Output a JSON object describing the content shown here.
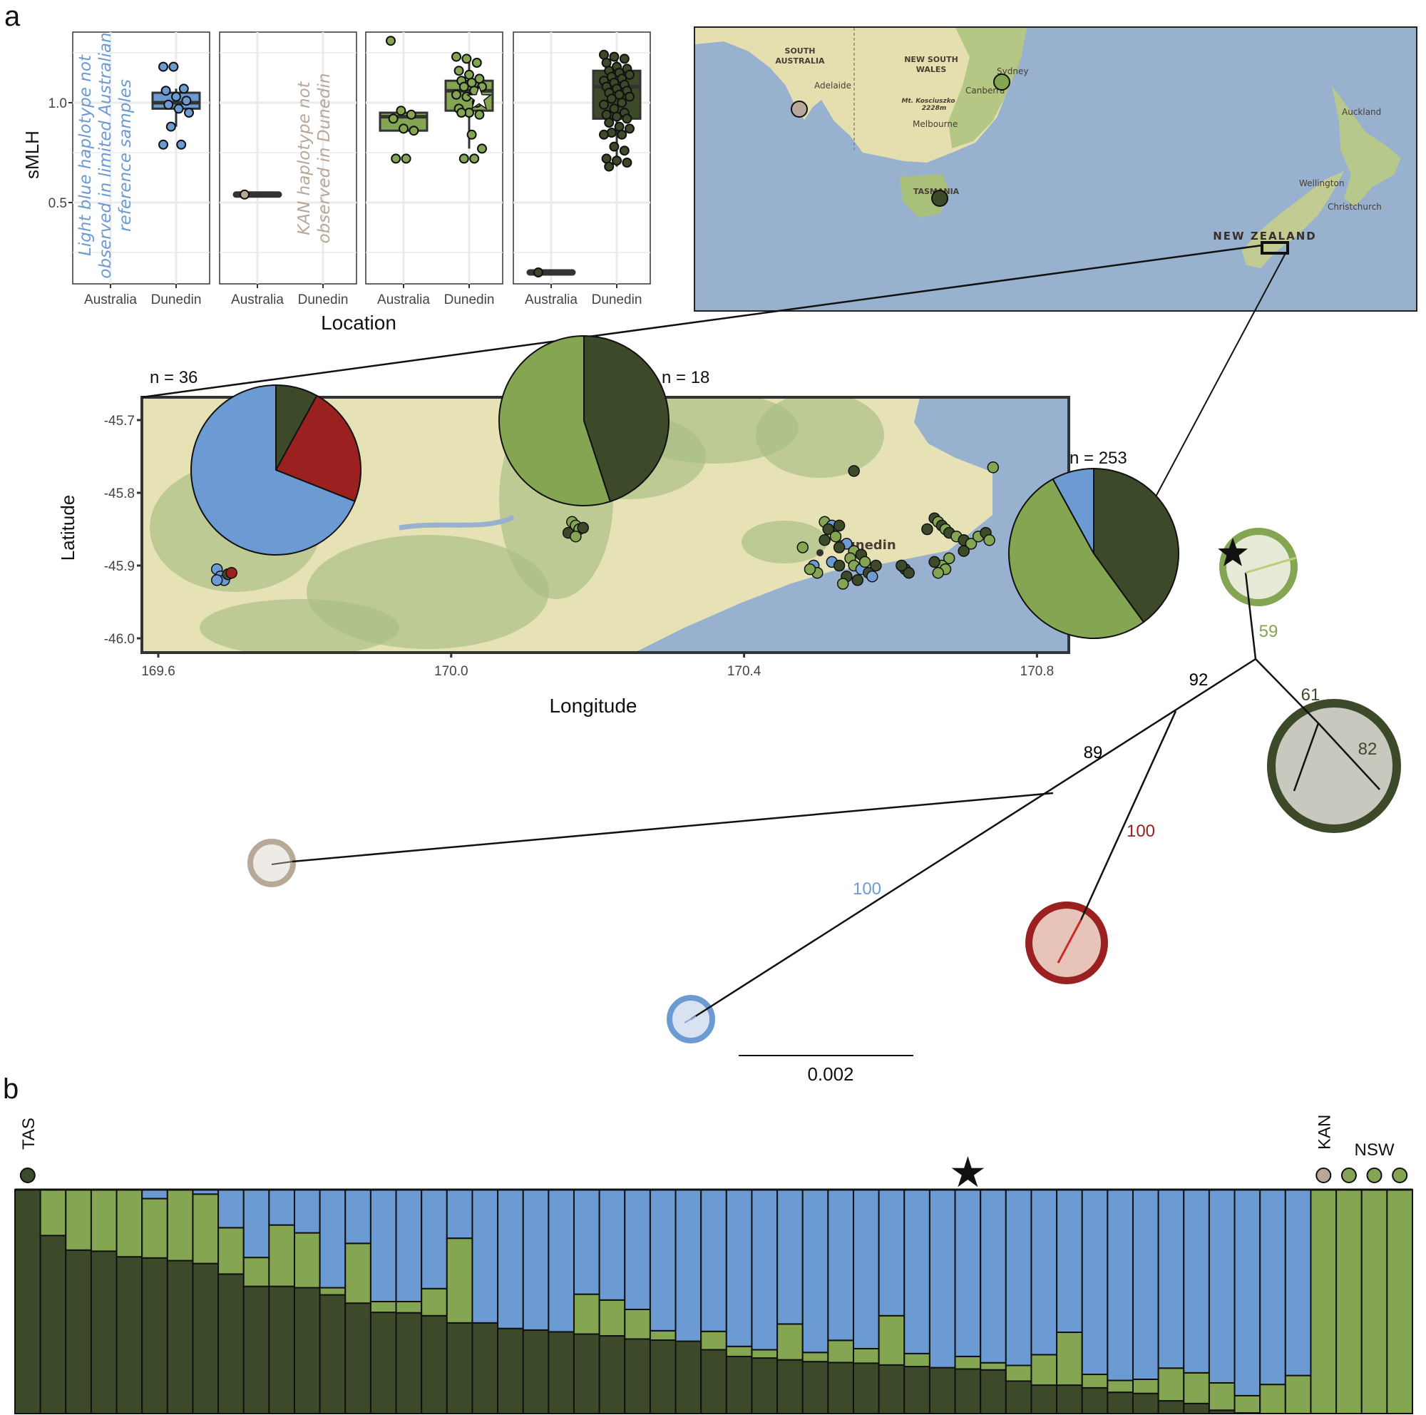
{
  "colors": {
    "dark_green": "#3d4a2a",
    "light_green": "#84a552",
    "blue": "#6b9bd2",
    "red": "#9b2020",
    "tan": "#b8a898"
  },
  "panel_labels": {
    "a": "a",
    "b": "b"
  },
  "chart_data": [
    {
      "type": "box",
      "ylabel": "sMLH",
      "xlabel": "Location",
      "ylim": [
        0.1,
        1.35
      ],
      "yticks": [
        "0.5",
        "1.0"
      ],
      "grid": true,
      "panels": [
        {
          "categories": [
            "Australia",
            "Dunedin"
          ],
          "color": "blue",
          "annotation": [
            "Light blue haplotype not",
            "observed in limited Australian",
            "reference samples"
          ],
          "groups": [
            {
              "location": "Australia",
              "points": []
            },
            {
              "location": "Dunedin",
              "box": [
                0.97,
                1.0,
                1.05
              ],
              "whiskers": [
                0.88,
                1.07
              ],
              "points": [
                1.18,
                1.18,
                1.07,
                1.06,
                1.03,
                1.01,
                0.99,
                0.97,
                0.95,
                0.88,
                0.79,
                0.79
              ]
            }
          ]
        },
        {
          "categories": [
            "Australia",
            "Dunedin"
          ],
          "color": "tan",
          "annotation": [
            "KAN haplotype not",
            "observed in Dunedin"
          ],
          "groups": [
            {
              "location": "Australia",
              "box": [
                0.54,
                0.54,
                0.54
              ],
              "whiskers": [
                0.54,
                0.54
              ],
              "points": [
                0.54
              ]
            },
            {
              "location": "Dunedin",
              "points": []
            }
          ]
        },
        {
          "categories": [
            "Australia",
            "Dunedin"
          ],
          "color": "light_green",
          "groups": [
            {
              "location": "Australia",
              "box": [
                0.86,
                0.93,
                0.95
              ],
              "whiskers": [
                0.86,
                0.96
              ],
              "points": [
                1.31,
                0.96,
                0.94,
                0.92,
                0.87,
                0.86,
                0.72,
                0.72
              ]
            },
            {
              "location": "Dunedin",
              "box": [
                0.96,
                1.06,
                1.11
              ],
              "whiskers": [
                0.77,
                1.23
              ],
              "star": 1.02,
              "points": [
                1.23,
                1.22,
                1.2,
                1.16,
                1.14,
                1.12,
                1.11,
                1.1,
                1.08,
                1.08,
                1.06,
                1.04,
                1.03,
                1.0,
                0.97,
                0.95,
                0.94,
                0.95,
                0.84,
                0.77,
                0.72,
                0.72
              ]
            }
          ]
        },
        {
          "categories": [
            "Australia",
            "Dunedin"
          ],
          "color": "dark_green",
          "groups": [
            {
              "location": "Australia",
              "box": [
                0.15,
                0.15,
                0.15
              ],
              "whiskers": [
                0.15,
                0.15
              ],
              "points": [
                0.15
              ]
            },
            {
              "location": "Dunedin",
              "box": [
                0.92,
                1.08,
                1.16
              ],
              "whiskers": [
                0.68,
                1.23
              ],
              "points": [
                1.24,
                1.23,
                1.22,
                1.2,
                1.18,
                1.17,
                1.16,
                1.15,
                1.14,
                1.13,
                1.12,
                1.11,
                1.1,
                1.09,
                1.08,
                1.07,
                1.06,
                1.05,
                1.04,
                1.03,
                1.02,
                1.0,
                0.99,
                0.97,
                0.95,
                0.94,
                0.93,
                0.92,
                0.9,
                0.88,
                0.87,
                0.85,
                0.84,
                0.84,
                0.78,
                0.76,
                0.72,
                0.71,
                0.7,
                0.68
              ]
            }
          ]
        }
      ]
    },
    {
      "type": "scatter-map",
      "xlabel": "Longitude",
      "ylabel": "Latitude",
      "xticks": [
        169.6,
        170.0,
        170.4,
        170.8
      ],
      "xtick_labels": [
        "169.6",
        "170.0",
        "170.4",
        "170.8"
      ],
      "yticks": [
        -45.7,
        -45.8,
        -45.9,
        -46.0
      ],
      "ytick_labels": [
        "-45.7",
        "-45.8",
        "-45.9",
        "-46.0"
      ],
      "place_label": "Dunedin",
      "points": [
        [
          169.68,
          -45.905,
          "blue"
        ],
        [
          169.685,
          -45.915,
          "blue"
        ],
        [
          169.69,
          -45.92,
          "blue"
        ],
        [
          169.695,
          -45.912,
          "dark_green"
        ],
        [
          169.7,
          -45.91,
          "red"
        ],
        [
          169.68,
          -45.92,
          "blue"
        ],
        [
          170.165,
          -45.84,
          "light_green"
        ],
        [
          170.17,
          -45.845,
          "light_green"
        ],
        [
          170.175,
          -45.85,
          "light_green"
        ],
        [
          170.16,
          -45.855,
          "dark_green"
        ],
        [
          170.17,
          -45.86,
          "light_green"
        ],
        [
          170.18,
          -45.848,
          "dark_green"
        ],
        [
          170.55,
          -45.77,
          "dark_green"
        ],
        [
          170.74,
          -45.765,
          "light_green"
        ],
        [
          170.48,
          -45.875,
          "light_green"
        ],
        [
          170.51,
          -45.84,
          "light_green"
        ],
        [
          170.52,
          -45.845,
          "blue"
        ],
        [
          170.53,
          -45.845,
          "dark_green"
        ],
        [
          170.515,
          -45.85,
          "dark_green"
        ],
        [
          170.525,
          -45.86,
          "light_green"
        ],
        [
          170.51,
          -45.865,
          "dark_green"
        ],
        [
          170.54,
          -45.87,
          "blue"
        ],
        [
          170.53,
          -45.875,
          "dark_green"
        ],
        [
          170.55,
          -45.88,
          "light_green"
        ],
        [
          170.56,
          -45.885,
          "dark_green"
        ],
        [
          170.545,
          -45.89,
          "light_green"
        ],
        [
          170.52,
          -45.895,
          "blue"
        ],
        [
          170.53,
          -45.9,
          "dark_green"
        ],
        [
          170.55,
          -45.9,
          "light_green"
        ],
        [
          170.56,
          -45.905,
          "blue"
        ],
        [
          170.57,
          -45.91,
          "dark_green"
        ],
        [
          170.54,
          -45.915,
          "dark_green"
        ],
        [
          170.495,
          -45.9,
          "blue"
        ],
        [
          170.5,
          -45.91,
          "light_green"
        ],
        [
          170.49,
          -45.905,
          "light_green"
        ],
        [
          170.555,
          -45.92,
          "dark_green"
        ],
        [
          170.575,
          -45.915,
          "blue"
        ],
        [
          170.58,
          -45.9,
          "dark_green"
        ],
        [
          170.62,
          -45.905,
          "dark_green"
        ],
        [
          170.625,
          -45.91,
          "dark_green"
        ],
        [
          170.615,
          -45.9,
          "dark_green"
        ],
        [
          170.535,
          -45.925,
          "light_green"
        ],
        [
          170.565,
          -45.895,
          "light_green"
        ],
        [
          170.66,
          -45.835,
          "dark_green"
        ],
        [
          170.665,
          -45.84,
          "light_green"
        ],
        [
          170.67,
          -45.845,
          "dark_green"
        ],
        [
          170.675,
          -45.85,
          "light_green"
        ],
        [
          170.68,
          -45.855,
          "dark_green"
        ],
        [
          170.69,
          -45.86,
          "light_green"
        ],
        [
          170.7,
          -45.865,
          "dark_green"
        ],
        [
          170.71,
          -45.87,
          "light_green"
        ],
        [
          170.72,
          -45.86,
          "light_green"
        ],
        [
          170.73,
          -45.855,
          "dark_green"
        ],
        [
          170.735,
          -45.865,
          "light_green"
        ],
        [
          170.7,
          -45.88,
          "dark_green"
        ],
        [
          170.68,
          -45.89,
          "light_green"
        ],
        [
          170.67,
          -45.9,
          "light_green"
        ],
        [
          170.66,
          -45.895,
          "dark_green"
        ],
        [
          170.675,
          -45.905,
          "light_green"
        ],
        [
          170.665,
          -45.91,
          "light_green"
        ],
        [
          170.65,
          -45.85,
          "dark_green"
        ]
      ]
    },
    {
      "type": "pie",
      "pies": [
        {
          "label": "n = 36",
          "slices": [
            {
              "color": "dark_green",
              "value": 0.08
            },
            {
              "color": "red",
              "value": 0.23
            },
            {
              "color": "blue",
              "value": 0.69
            }
          ]
        },
        {
          "label": "n = 18",
          "slices": [
            {
              "color": "dark_green",
              "value": 0.45
            },
            {
              "color": "light_green",
              "value": 0.55
            }
          ]
        },
        {
          "label": "n = 253",
          "slices": [
            {
              "color": "dark_green",
              "value": 0.4
            },
            {
              "color": "light_green",
              "value": 0.52
            },
            {
              "color": "blue",
              "value": 0.08
            }
          ]
        }
      ]
    },
    {
      "type": "tree",
      "scale_bar": "0.002",
      "supports": [
        {
          "value": "59",
          "color": "light_green"
        },
        {
          "value": "61",
          "color": "dark_green"
        },
        {
          "value": "82",
          "color": "dark_green"
        },
        {
          "value": "92",
          "color": "black"
        },
        {
          "value": "89",
          "color": "black"
        },
        {
          "value": "100",
          "color": "red"
        },
        {
          "value": "100",
          "color": "blue"
        }
      ],
      "clades": [
        "light_green",
        "dark_green",
        "red",
        "tan",
        "blue"
      ]
    },
    {
      "type": "bar",
      "stacked": true,
      "series_colors": [
        "dark_green",
        "light_green",
        "blue"
      ],
      "top_labels": {
        "tas": "TAS",
        "kan": "KAN",
        "nsw": "NSW"
      },
      "top_markers": [
        {
          "index": 0,
          "color": "dark_green",
          "shape": "circle"
        },
        {
          "index": 37,
          "color": "black",
          "shape": "star"
        },
        {
          "index": 51,
          "color": "tan",
          "shape": "circle"
        },
        {
          "index": 52,
          "color": "light_green",
          "shape": "circle"
        },
        {
          "index": 53,
          "color": "light_green",
          "shape": "circle"
        },
        {
          "index": 54,
          "color": "light_green",
          "shape": "circle"
        }
      ],
      "values": [
        [
          1,
          0,
          0
        ],
        [
          0.795,
          0.205,
          0
        ],
        [
          0.73,
          0.27,
          0
        ],
        [
          0.725,
          0.275,
          0
        ],
        [
          0.7,
          0.3,
          0
        ],
        [
          0.695,
          0.265,
          0.04
        ],
        [
          0.683,
          0.317,
          0
        ],
        [
          0.67,
          0.31,
          0.02
        ],
        [
          0.623,
          0.207,
          0.17
        ],
        [
          0.568,
          0.129,
          0.303
        ],
        [
          0.568,
          0.274,
          0.158
        ],
        [
          0.562,
          0.245,
          0.193
        ],
        [
          0.53,
          0.032,
          0.438
        ],
        [
          0.493,
          0.267,
          0.24
        ],
        [
          0.452,
          0.048,
          0.5
        ],
        [
          0.45,
          0.05,
          0.5
        ],
        [
          0.437,
          0.121,
          0.442
        ],
        [
          0.405,
          0.378,
          0.217
        ],
        [
          0.405,
          0,
          0.595
        ],
        [
          0.38,
          0,
          0.62
        ],
        [
          0.373,
          0,
          0.627
        ],
        [
          0.365,
          0,
          0.635
        ],
        [
          0.355,
          0.178,
          0.467
        ],
        [
          0.347,
          0.16,
          0.493
        ],
        [
          0.333,
          0.132,
          0.535
        ],
        [
          0.328,
          0.042,
          0.63
        ],
        [
          0.323,
          0,
          0.677
        ],
        [
          0.285,
          0.082,
          0.633
        ],
        [
          0.255,
          0.045,
          0.7
        ],
        [
          0.248,
          0.037,
          0.715
        ],
        [
          0.24,
          0.16,
          0.6
        ],
        [
          0.232,
          0.041,
          0.727
        ],
        [
          0.228,
          0.099,
          0.673
        ],
        [
          0.225,
          0.065,
          0.71
        ],
        [
          0.217,
          0.22,
          0.563
        ],
        [
          0.21,
          0.058,
          0.732
        ],
        [
          0.205,
          0,
          0.795
        ],
        [
          0.199,
          0.056,
          0.745
        ],
        [
          0.195,
          0.032,
          0.773
        ],
        [
          0.145,
          0.07,
          0.785
        ],
        [
          0.127,
          0.136,
          0.737
        ],
        [
          0.127,
          0.236,
          0.637
        ],
        [
          0.115,
          0.06,
          0.825
        ],
        [
          0.095,
          0.053,
          0.852
        ],
        [
          0.09,
          0.063,
          0.847
        ],
        [
          0.057,
          0.146,
          0.797
        ],
        [
          0.045,
          0.137,
          0.818
        ],
        [
          0.015,
          0.122,
          0.863
        ],
        [
          0.003,
          0.077,
          0.92
        ],
        [
          0,
          0.13,
          0.87
        ],
        [
          0,
          0.17,
          0.83
        ],
        [
          0,
          1,
          0
        ],
        [
          0,
          1,
          0
        ],
        [
          0,
          1,
          0
        ],
        [
          0,
          1,
          0
        ]
      ]
    }
  ],
  "overview_map": {
    "labels": {
      "south_australia": [
        "SOUTH",
        "AUSTRALIA"
      ],
      "nsw": [
        "NEW SOUTH",
        "WALES"
      ],
      "adelaide": "Adelaide",
      "sydney": "Sydney",
      "canberra": "Canberra",
      "kosciuszko": [
        "Mt. Kosciuszko",
        "2228m"
      ],
      "melbourne": "Melbourne",
      "tasmania": "TASMANIA",
      "auckland": "Auckland",
      "wellington": "Wellington",
      "christchurch": "Christchurch",
      "new_zealand": "NEW ZEALAND"
    },
    "sites": [
      {
        "name": "KAN",
        "color": "tan"
      },
      {
        "name": "NSW",
        "color": "light_green"
      },
      {
        "name": "TAS",
        "color": "dark_green"
      }
    ]
  }
}
